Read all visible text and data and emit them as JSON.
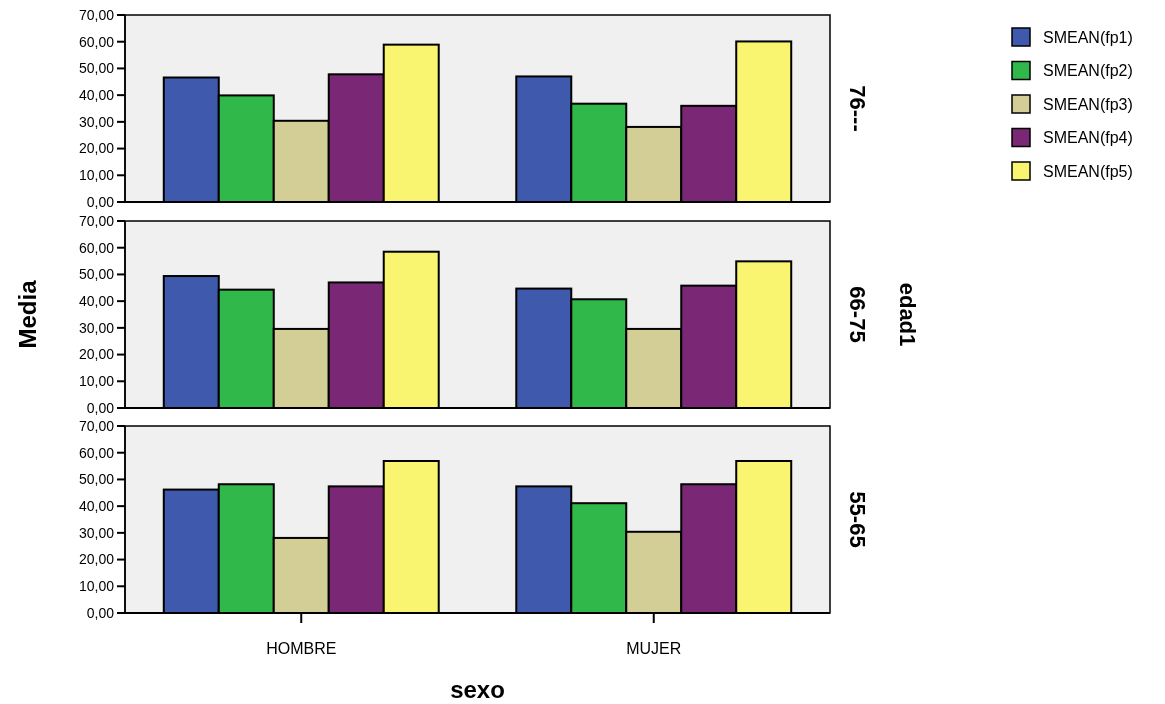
{
  "chart_data": [
    {
      "type": "bar",
      "y2label": "76---",
      "categories": [
        null,
        null
      ],
      "legend": "right",
      "tick_labels": "y",
      "grid": false,
      "ylim": [
        0,
        70
      ],
      "yticks": [
        {
          "value": 0,
          "label": "0,00"
        },
        {
          "value": 10,
          "label": "10,00"
        },
        {
          "value": 20,
          "label": "20,00"
        },
        {
          "value": 30,
          "label": "30,00"
        },
        {
          "value": 40,
          "label": "40,00"
        },
        {
          "value": 50,
          "label": "50,00"
        },
        {
          "value": 60,
          "label": "60,00"
        },
        {
          "value": 70,
          "label": "70,00"
        }
      ],
      "series": [
        {
          "name": "SMEAN(fp1)",
          "color": "#3f5aac",
          "values": [
            46.6,
            47.0
          ]
        },
        {
          "name": "SMEAN(fp2)",
          "color": "#30b84a",
          "values": [
            39.9,
            36.8
          ]
        },
        {
          "name": "SMEAN(fp3)",
          "color": "#d3cd96",
          "values": [
            30.4,
            28.1
          ]
        },
        {
          "name": "SMEAN(fp4)",
          "color": "#7a2876",
          "values": [
            47.8,
            36.0
          ]
        },
        {
          "name": "SMEAN(fp5)",
          "color": "#faf571",
          "values": [
            58.9,
            60.1
          ]
        }
      ]
    },
    {
      "type": "bar",
      "ylabel": "Media",
      "y2label": "66-75",
      "annotations": [
        "edad1"
      ],
      "categories": [
        null,
        null
      ],
      "tick_labels": "y",
      "grid": false,
      "ylim": [
        0,
        70
      ],
      "yticks": [
        {
          "value": 0,
          "label": "0,00"
        },
        {
          "value": 10,
          "label": "10,00"
        },
        {
          "value": 20,
          "label": "20,00"
        },
        {
          "value": 30,
          "label": "30,00"
        },
        {
          "value": 40,
          "label": "40,00"
        },
        {
          "value": 50,
          "label": "50,00"
        },
        {
          "value": 60,
          "label": "60,00"
        },
        {
          "value": 70,
          "label": "70,00"
        }
      ],
      "series": [
        {
          "color": "#3f5aac",
          "values": [
            49.4,
            44.7
          ]
        },
        {
          "color": "#30b84a",
          "values": [
            44.3,
            40.7
          ]
        },
        {
          "color": "#d3cd96",
          "values": [
            29.6,
            29.6
          ]
        },
        {
          "color": "#7a2876",
          "values": [
            47.0,
            45.8
          ]
        },
        {
          "color": "#faf571",
          "values": [
            58.5,
            54.9
          ]
        }
      ]
    },
    {
      "type": "bar",
      "y2label": "55-65",
      "xlabel": "sexo",
      "categories": [
        "HOMBRE",
        "MUJER"
      ],
      "grid": false,
      "ylim": [
        0,
        70
      ],
      "yticks": [
        {
          "value": 0,
          "label": "0,00"
        },
        {
          "value": 10,
          "label": "10,00"
        },
        {
          "value": 20,
          "label": "20,00"
        },
        {
          "value": 30,
          "label": "30,00"
        },
        {
          "value": 40,
          "label": "40,00"
        },
        {
          "value": 50,
          "label": "50,00"
        },
        {
          "value": 60,
          "label": "60,00"
        },
        {
          "value": 70,
          "label": "70,00"
        }
      ],
      "series": [
        {
          "color": "#3f5aac",
          "values": [
            46.2,
            47.4
          ]
        },
        {
          "color": "#30b84a",
          "values": [
            48.2,
            41.1
          ]
        },
        {
          "color": "#d3cd96",
          "values": [
            28.1,
            30.4
          ]
        },
        {
          "color": "#7a2876",
          "values": [
            47.4,
            48.2
          ]
        },
        {
          "color": "#faf571",
          "values": [
            56.9,
            56.9
          ]
        }
      ]
    }
  ]
}
